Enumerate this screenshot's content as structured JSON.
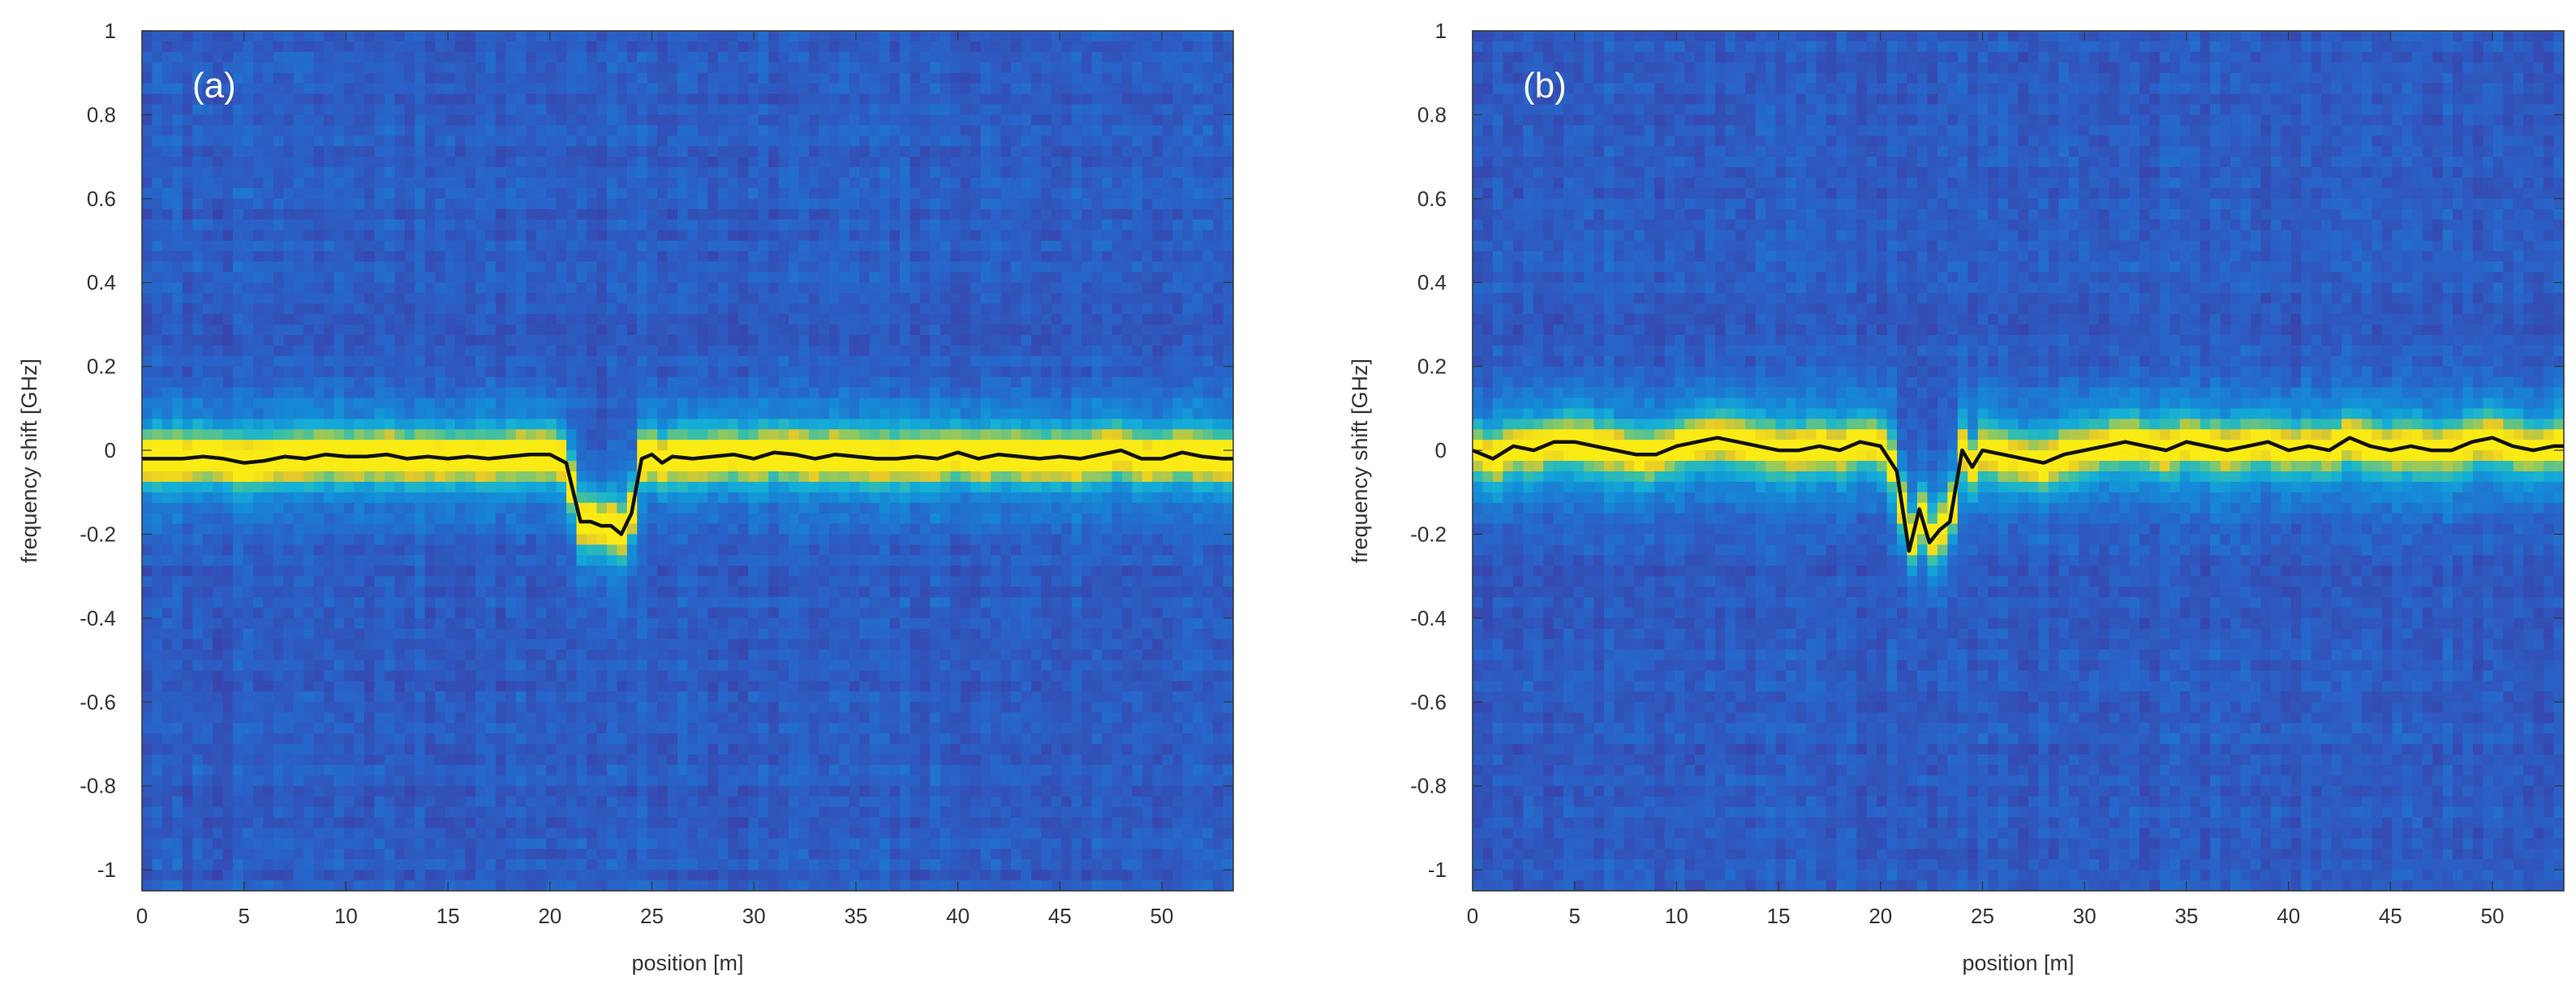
{
  "colors": {
    "heatmap_low": "#3b3fa8",
    "heatmap_mid": "#1aa5e0",
    "heatmap_high": "#f5d21c",
    "trace": "#111111",
    "axis": "#333333",
    "panel_label": "#ffffff"
  },
  "chart_data": [
    {
      "type": "heatmap",
      "panel_label": "(a)",
      "xlabel": "position  [m]",
      "ylabel": "frequency shift  [GHz]",
      "xlim": [
        0,
        53.5
      ],
      "ylim": [
        -1.05,
        1
      ],
      "xticks": [
        0,
        5,
        10,
        15,
        20,
        25,
        30,
        35,
        40,
        45,
        50
      ],
      "yticks": [
        -1,
        -0.8,
        -0.6,
        -0.4,
        -0.2,
        0,
        0.2,
        0.4,
        0.6,
        0.8,
        1
      ],
      "ytick_labels": [
        "-1",
        "-0.8",
        "-0.6",
        "-0.4",
        "-0.2",
        "0",
        "0.2",
        "0.4",
        "0.6",
        "0.8",
        "1"
      ],
      "grid": false,
      "heatmap_description_free": true,
      "trace": {
        "x": [
          0,
          1,
          2,
          3,
          4,
          5,
          6,
          7,
          8,
          9,
          10,
          11,
          12,
          13,
          14,
          15,
          16,
          17,
          18,
          19,
          20,
          20.8,
          21.5,
          22,
          22.5,
          23,
          23.5,
          24,
          24.5,
          25,
          25.5,
          26,
          27,
          28,
          29,
          30,
          31,
          32,
          33,
          34,
          35,
          36,
          37,
          38,
          39,
          40,
          41,
          42,
          43,
          44,
          45,
          46,
          47,
          48,
          49,
          50,
          51,
          52,
          53,
          53.5
        ],
        "y": [
          -0.02,
          -0.02,
          -0.02,
          -0.015,
          -0.02,
          -0.03,
          -0.025,
          -0.015,
          -0.02,
          -0.01,
          -0.015,
          -0.015,
          -0.01,
          -0.02,
          -0.015,
          -0.02,
          -0.015,
          -0.02,
          -0.015,
          -0.01,
          -0.01,
          -0.03,
          -0.17,
          -0.17,
          -0.18,
          -0.18,
          -0.2,
          -0.15,
          -0.02,
          -0.01,
          -0.03,
          -0.015,
          -0.02,
          -0.015,
          -0.01,
          -0.02,
          -0.005,
          -0.01,
          -0.02,
          -0.01,
          -0.015,
          -0.02,
          -0.02,
          -0.015,
          -0.02,
          -0.005,
          -0.02,
          -0.01,
          -0.015,
          -0.02,
          -0.015,
          -0.02,
          -0.01,
          0.0,
          -0.02,
          -0.02,
          -0.005,
          -0.015,
          -0.02,
          -0.02
        ],
        "band_strength": 1.0,
        "noise_seed": 7
      }
    },
    {
      "type": "heatmap",
      "panel_label": "(b)",
      "xlabel": "position  [m]",
      "ylabel": "frequency shift  [GHz]",
      "xlim": [
        0,
        53.5
      ],
      "ylim": [
        -1.05,
        1
      ],
      "xticks": [
        0,
        5,
        10,
        15,
        20,
        25,
        30,
        35,
        40,
        45,
        50
      ],
      "yticks": [
        -1,
        -0.8,
        -0.6,
        -0.4,
        -0.2,
        0,
        0.2,
        0.4,
        0.6,
        0.8,
        1
      ],
      "ytick_labels": [
        "-1",
        "-0.8",
        "-0.6",
        "-0.4",
        "-0.2",
        "0",
        "0.2",
        "0.4",
        "0.6",
        "0.8",
        "1"
      ],
      "grid": false,
      "trace": {
        "x": [
          0,
          1,
          2,
          3,
          4,
          5,
          6,
          7,
          8,
          9,
          10,
          11,
          12,
          13,
          14,
          15,
          16,
          17,
          18,
          19,
          20,
          20.8,
          21.4,
          21.9,
          22.4,
          22.9,
          23.4,
          24,
          24.5,
          25,
          26,
          27,
          28,
          29,
          30,
          31,
          32,
          33,
          34,
          35,
          36,
          37,
          38,
          39,
          40,
          41,
          42,
          43,
          44,
          45,
          46,
          47,
          48,
          49,
          50,
          51,
          52,
          53,
          53.5
        ],
        "y": [
          0.0,
          -0.02,
          0.01,
          0.0,
          0.02,
          0.02,
          0.01,
          0.0,
          -0.01,
          -0.01,
          0.01,
          0.02,
          0.03,
          0.02,
          0.01,
          0.0,
          0.0,
          0.01,
          0.0,
          0.02,
          0.01,
          -0.05,
          -0.24,
          -0.14,
          -0.22,
          -0.19,
          -0.17,
          0.0,
          -0.04,
          0.0,
          -0.01,
          -0.02,
          -0.03,
          -0.01,
          0.0,
          0.01,
          0.02,
          0.01,
          0.0,
          0.02,
          0.01,
          0.0,
          0.01,
          0.02,
          0.0,
          0.01,
          0.0,
          0.03,
          0.01,
          0.0,
          0.01,
          0.0,
          0.0,
          0.02,
          0.03,
          0.01,
          0.0,
          0.01,
          0.01
        ],
        "band_strength": 0.85,
        "noise_seed": 19
      }
    }
  ]
}
